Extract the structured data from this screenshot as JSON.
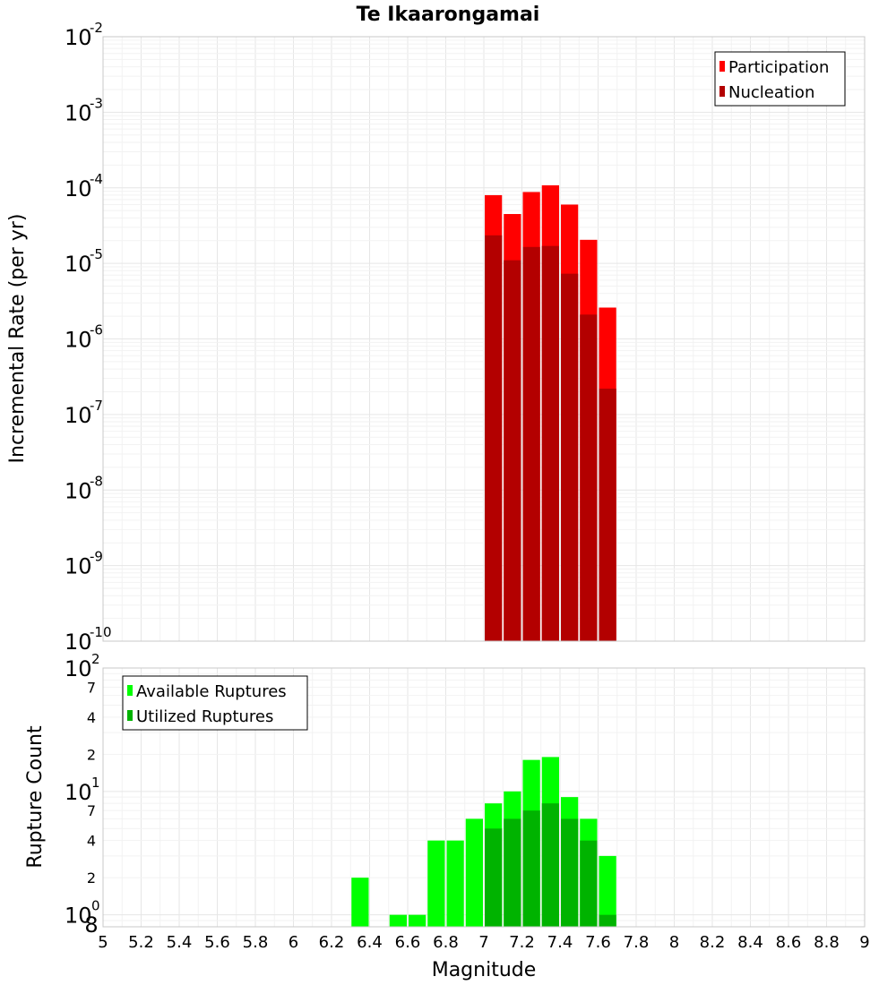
{
  "chart_data": [
    {
      "type": "bar",
      "title": "Te Ikaarongamai",
      "xlabel": "",
      "ylabel": "Incremental Rate (per yr)",
      "yscale": "log",
      "ylim": [
        1e-10,
        0.01
      ],
      "xlim": [
        5,
        9
      ],
      "bin_width": 0.1,
      "y_ticks": [
        {
          "base": "10",
          "exp": "-10"
        },
        {
          "base": "10",
          "exp": "-9"
        },
        {
          "base": "10",
          "exp": "-8"
        },
        {
          "base": "10",
          "exp": "-7"
        },
        {
          "base": "10",
          "exp": "-6"
        },
        {
          "base": "10",
          "exp": "-5"
        },
        {
          "base": "10",
          "exp": "-4"
        },
        {
          "base": "10",
          "exp": "-3"
        },
        {
          "base": "10",
          "exp": "-2"
        }
      ],
      "legend_position": "top-right",
      "grid": true,
      "series": [
        {
          "name": "Participation",
          "color": "#ff0000",
          "x": [
            7.05,
            7.15,
            7.25,
            7.35,
            7.45,
            7.55,
            7.65
          ],
          "values": [
            8e-05,
            4.5e-05,
            8.8e-05,
            0.000108,
            6e-05,
            2.05e-05,
            2.6e-06
          ]
        },
        {
          "name": "Nucleation",
          "color": "#b30000",
          "x": [
            7.05,
            7.15,
            7.25,
            7.35,
            7.45,
            7.55,
            7.65
          ],
          "values": [
            2.35e-05,
            1.1e-05,
            1.65e-05,
            1.7e-05,
            7.3e-06,
            2.1e-06,
            2.2e-07
          ]
        }
      ]
    },
    {
      "type": "bar",
      "title": "",
      "xlabel": "Magnitude",
      "ylabel": "Rupture Count",
      "yscale": "log",
      "ylim": [
        0.8,
        100
      ],
      "xlim": [
        5,
        9
      ],
      "bin_width": 0.1,
      "x_ticks": [
        "5",
        "5.2",
        "5.4",
        "5.6",
        "5.8",
        "6",
        "6.2",
        "6.4",
        "6.6",
        "6.8",
        "7",
        "7.2",
        "7.4",
        "7.6",
        "7.8",
        "8",
        "8.2",
        "8.4",
        "8.6",
        "8.8",
        "9"
      ],
      "y_major_ticks": [
        {
          "base": "10",
          "exp": "0"
        },
        {
          "base": "10",
          "exp": "1"
        },
        {
          "base": "10",
          "exp": "2"
        }
      ],
      "y_minor_ticks": [
        "8",
        "2",
        "4",
        "7",
        "2",
        "4",
        "7"
      ],
      "legend_position": "top-left",
      "grid": true,
      "series": [
        {
          "name": "Available Ruptures",
          "color": "#00ff00",
          "x": [
            6.35,
            6.55,
            6.65,
            6.75,
            6.85,
            6.95,
            7.05,
            7.15,
            7.25,
            7.35,
            7.45,
            7.55,
            7.65
          ],
          "values": [
            2,
            1,
            1,
            4,
            4,
            6,
            8,
            10,
            18,
            19,
            9,
            6,
            3
          ]
        },
        {
          "name": "Utilized Ruptures",
          "color": "#00b300",
          "x": [
            7.05,
            7.15,
            7.25,
            7.35,
            7.45,
            7.55,
            7.65
          ],
          "values": [
            5,
            6,
            7,
            8,
            6,
            4,
            1
          ]
        }
      ]
    }
  ]
}
